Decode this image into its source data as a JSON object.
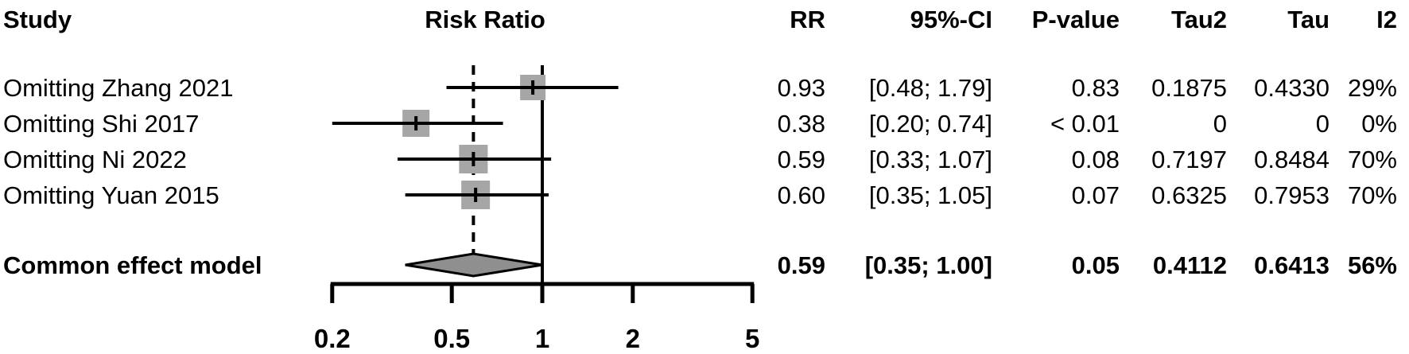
{
  "table": {
    "headers": {
      "study": "Study",
      "risk_ratio": "Risk Ratio",
      "rr": "RR",
      "ci": "95%-CI",
      "pvalue": "P-value",
      "tau2": "Tau2",
      "tau": "Tau",
      "i2": "I2"
    },
    "rows": [
      {
        "label": "Omitting Zhang 2021",
        "rr": "0.93",
        "ci": "[0.48; 1.79]",
        "pvalue": "0.83",
        "tau2": "0.1875",
        "tau": "0.4330",
        "i2": "29%"
      },
      {
        "label": "Omitting Shi 2017",
        "rr": "0.38",
        "ci": "[0.20; 0.74]",
        "pvalue": "< 0.01",
        "tau2": "0",
        "tau": "0",
        "i2": "0%"
      },
      {
        "label": "Omitting Ni 2022",
        "rr": "0.59",
        "ci": "[0.33; 1.07]",
        "pvalue": "0.08",
        "tau2": "0.7197",
        "tau": "0.8484",
        "i2": "70%"
      },
      {
        "label": "Omitting Yuan 2015",
        "rr": "0.60",
        "ci": "[0.35; 1.05]",
        "pvalue": "0.07",
        "tau2": "0.6325",
        "tau": "0.7953",
        "i2": "70%"
      }
    ],
    "summary": {
      "label": "Common effect model",
      "rr": "0.59",
      "ci": "[0.35; 1.00]",
      "pvalue": "0.05",
      "tau2": "0.4112",
      "tau": "0.6413",
      "i2": "56%"
    }
  },
  "chart_data": {
    "type": "forest",
    "x_scale": "log10",
    "xlabel": "Risk Ratio",
    "axis_ticks": [
      0.2,
      0.5,
      1,
      2,
      5
    ],
    "tick_labels": [
      "0.2",
      "0.5",
      "1",
      "2",
      "5"
    ],
    "xlim": [
      0.2,
      5
    ],
    "reference_line": 1.0,
    "dashed_line_at": 0.59,
    "studies": [
      {
        "label": "Omitting Zhang 2021",
        "rr": 0.93,
        "ci_low": 0.48,
        "ci_high": 1.79,
        "marker_size": 32
      },
      {
        "label": "Omitting Shi 2017",
        "rr": 0.38,
        "ci_low": 0.2,
        "ci_high": 0.74,
        "marker_size": 34
      },
      {
        "label": "Omitting Ni 2022",
        "rr": 0.59,
        "ci_low": 0.33,
        "ci_high": 1.07,
        "marker_size": 36
      },
      {
        "label": "Omitting Yuan 2015",
        "rr": 0.6,
        "ci_low": 0.35,
        "ci_high": 1.05,
        "marker_size": 36
      }
    ],
    "summary": {
      "label": "Common effect model",
      "rr": 0.59,
      "ci_low": 0.35,
      "ci_high": 1.0
    },
    "colors": {
      "square_fill": "#a6a6a6",
      "diamond_fill": "#8f8f8f",
      "line": "#000000",
      "text": "#000000"
    }
  }
}
